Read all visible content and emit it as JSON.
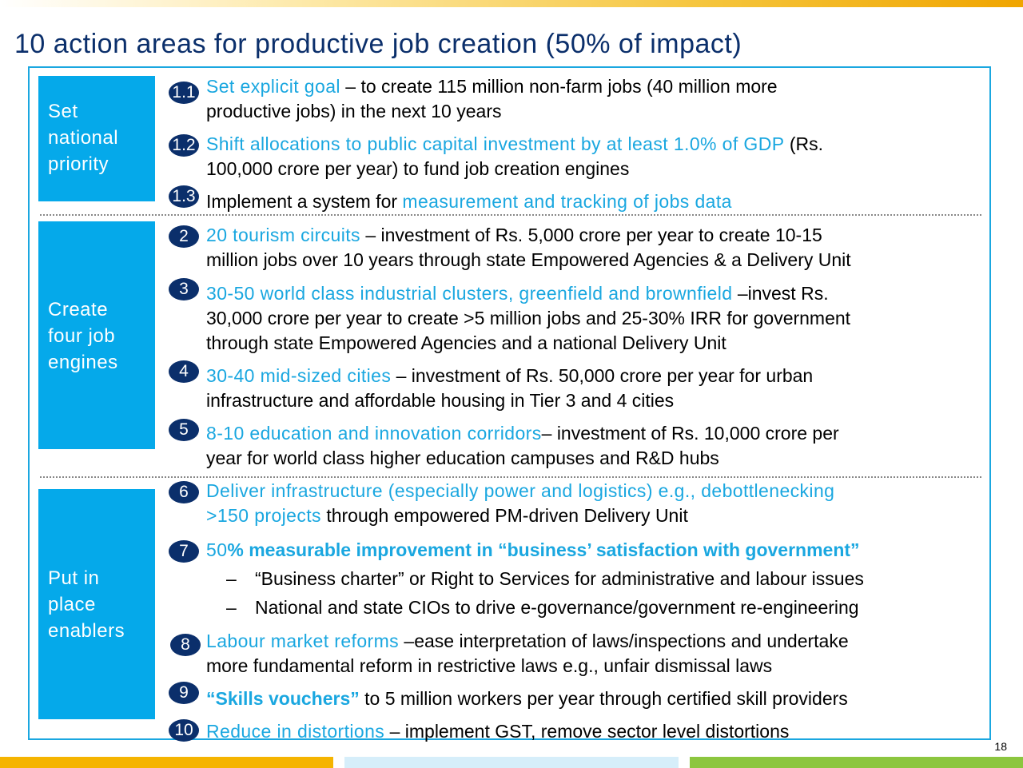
{
  "title": "10 action areas for productive job creation (50% of impact)",
  "page_number": "18",
  "sections": [
    {
      "label_lines": [
        "Set",
        "national",
        "priority"
      ]
    },
    {
      "label_lines": [
        "Create",
        "four job",
        "engines"
      ]
    },
    {
      "label_lines": [
        "Put in",
        "place",
        "enablers"
      ]
    }
  ],
  "items": [
    {
      "num": "1.1",
      "line1_hl": "Set explicit goal",
      "line1_rest": " – to create 115 million non-farm jobs (40 million more",
      "line2": "productive jobs) in the next 10 years"
    },
    {
      "num": "1.2",
      "line1_hl": "Shift allocations to public capital investment by at least 1.0% of GDP",
      "line1_rest": " (Rs.",
      "line2": "100,000 crore per year) to fund job creation engines"
    },
    {
      "num": "1.3",
      "line1_pre": "Implement a system for ",
      "line1_hl": "measurement and tracking of jobs data"
    },
    {
      "num": "2",
      "line1_hl": "20 tourism circuits",
      "line1_rest": " – investment of Rs. 5,000 crore per year to create 10-15",
      "line2": "million jobs over 10 years through state Empowered Agencies & a Delivery Unit"
    },
    {
      "num": "3",
      "line1_hl": "30-50 world class industrial clusters, greenfield and brownfield",
      "line1_rest": " –invest Rs.",
      "line2": "30,000 crore per year to create >5 million  jobs and 25-30% IRR for government",
      "line3": "through state Empowered Agencies and a national Delivery Unit"
    },
    {
      "num": "4",
      "line1_hl": "30-40 mid-sized cities",
      "line1_rest": " – investment of Rs. 50,000 crore per year for urban",
      "line2": "infrastructure and affordable housing in Tier 3 and 4 cities"
    },
    {
      "num": "5",
      "line1_hl": "8-10 education and innovation corridors",
      "line1_rest": "– investment of Rs. 10,000 crore per",
      "line2": "year for world class higher education campuses and R&D hubs"
    },
    {
      "num": "6",
      "line1_hl": "Deliver infrastructure (especially power and logistics) e.g., debottlenecking",
      "line2_hl": ">150 projects",
      "line2": " through empowered PM-driven Delivery Unit"
    },
    {
      "num": "7",
      "line1_hl_plain": "50",
      "line1_hlb": "% measurable improvement in “business’ satisfaction with government”",
      "subs": [
        "“Business charter” or Right to Services for administrative and labour issues",
        "National and state CIOs to drive e-governance/government re-engineering"
      ]
    },
    {
      "num": "8",
      "line1_hl": "Labour market reforms",
      "line1_rest": " –ease interpretation of laws/inspections and undertake",
      "line2": "more fundamental reform in restrictive laws e.g., unfair dismissal laws"
    },
    {
      "num": "9",
      "line1_hlb": "“Skills vouchers”",
      "line1_rest": " to  5 million workers per year through certified skill providers"
    },
    {
      "num": "10",
      "line1_hl": "Reduce in distortions",
      "line1_rest": " – implement GST, remove sector level distortions"
    }
  ],
  "sub_dash": "–",
  "colors": {
    "accent": "#1aa7e0",
    "title": "#0b2f6b",
    "section_fill": "#05a9ea",
    "badge": "#0b2f6b"
  }
}
